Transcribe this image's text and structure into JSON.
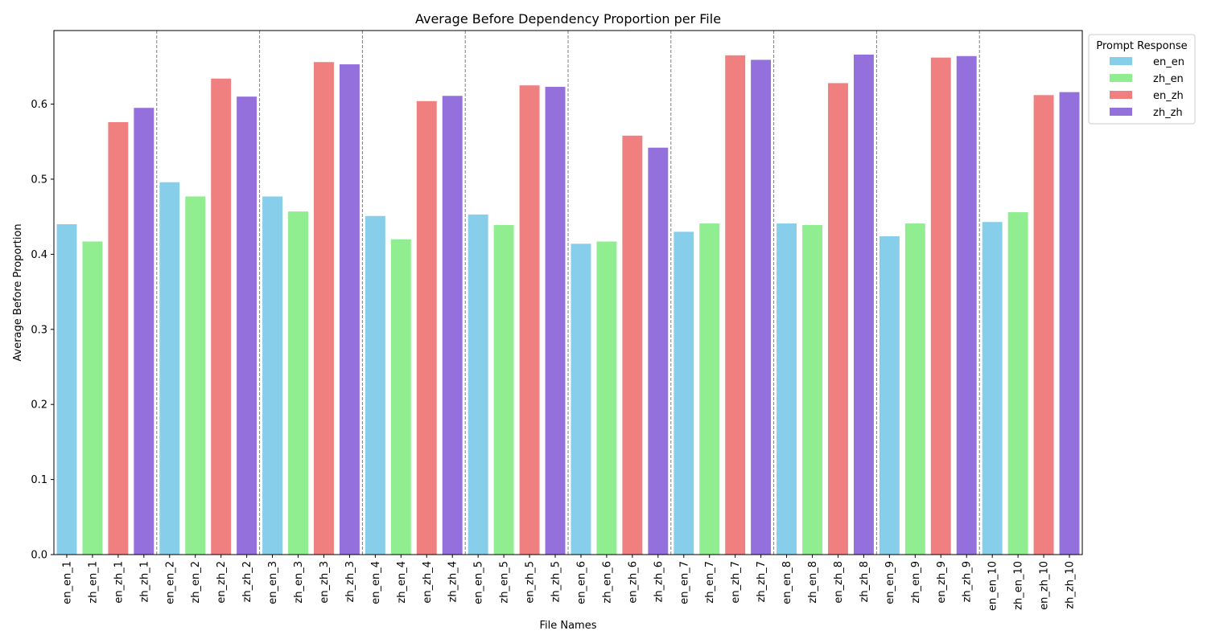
{
  "chart_data": {
    "type": "bar",
    "title": "Average Before Dependency Proportion per File",
    "xlabel": "File Names",
    "ylabel": "Average Before Proportion",
    "ylim": [
      0,
      0.698
    ],
    "yticks": [
      "0.0",
      "0.1",
      "0.2",
      "0.3",
      "0.4",
      "0.5",
      "0.6"
    ],
    "categories": [
      "en_en_1",
      "zh_en_1",
      "en_zh_1",
      "zh_zh_1",
      "en_en_2",
      "zh_en_2",
      "en_zh_2",
      "zh_zh_2",
      "en_en_3",
      "zh_en_3",
      "en_zh_3",
      "zh_zh_3",
      "en_en_4",
      "zh_en_4",
      "en_zh_4",
      "zh_zh_4",
      "en_en_5",
      "zh_en_5",
      "en_zh_5",
      "zh_zh_5",
      "en_en_6",
      "zh_en_6",
      "en_zh_6",
      "zh_zh_6",
      "en_en_7",
      "zh_en_7",
      "en_zh_7",
      "zh_zh_7",
      "en_en_8",
      "zh_en_8",
      "en_zh_8",
      "zh_zh_8",
      "en_en_9",
      "zh_en_9",
      "en_zh_9",
      "zh_zh_9",
      "en_en_10",
      "zh_en_10",
      "en_zh_10",
      "zh_zh_10"
    ],
    "values": [
      0.44,
      0.417,
      0.576,
      0.595,
      0.496,
      0.477,
      0.634,
      0.61,
      0.477,
      0.457,
      0.656,
      0.653,
      0.451,
      0.42,
      0.604,
      0.611,
      0.453,
      0.439,
      0.625,
      0.623,
      0.414,
      0.417,
      0.558,
      0.542,
      0.43,
      0.441,
      0.665,
      0.659,
      0.441,
      0.439,
      0.628,
      0.666,
      0.424,
      0.441,
      0.662,
      0.664,
      0.443,
      0.456,
      0.612,
      0.616
    ],
    "bar_series": [
      "en_en",
      "zh_en",
      "en_zh",
      "zh_zh",
      "en_en",
      "zh_en",
      "en_zh",
      "zh_zh",
      "en_en",
      "zh_en",
      "en_zh",
      "zh_zh",
      "en_en",
      "zh_en",
      "en_zh",
      "zh_zh",
      "en_en",
      "zh_en",
      "en_zh",
      "zh_zh",
      "en_en",
      "zh_en",
      "en_zh",
      "zh_zh",
      "en_en",
      "zh_en",
      "en_zh",
      "zh_zh",
      "en_en",
      "zh_en",
      "en_zh",
      "zh_zh",
      "en_en",
      "zh_en",
      "en_zh",
      "zh_zh",
      "en_en",
      "zh_en",
      "en_zh",
      "zh_zh"
    ],
    "group_separators": true,
    "legend": {
      "title": "Prompt Response",
      "placement": "outside-top-right",
      "entries": [
        {
          "label": "en_en",
          "color": "#87ceeb"
        },
        {
          "label": "zh_en",
          "color": "#90ee90"
        },
        {
          "label": "en_zh",
          "color": "#f08080"
        },
        {
          "label": "zh_zh",
          "color": "#9370db"
        }
      ]
    },
    "grid": false
  }
}
